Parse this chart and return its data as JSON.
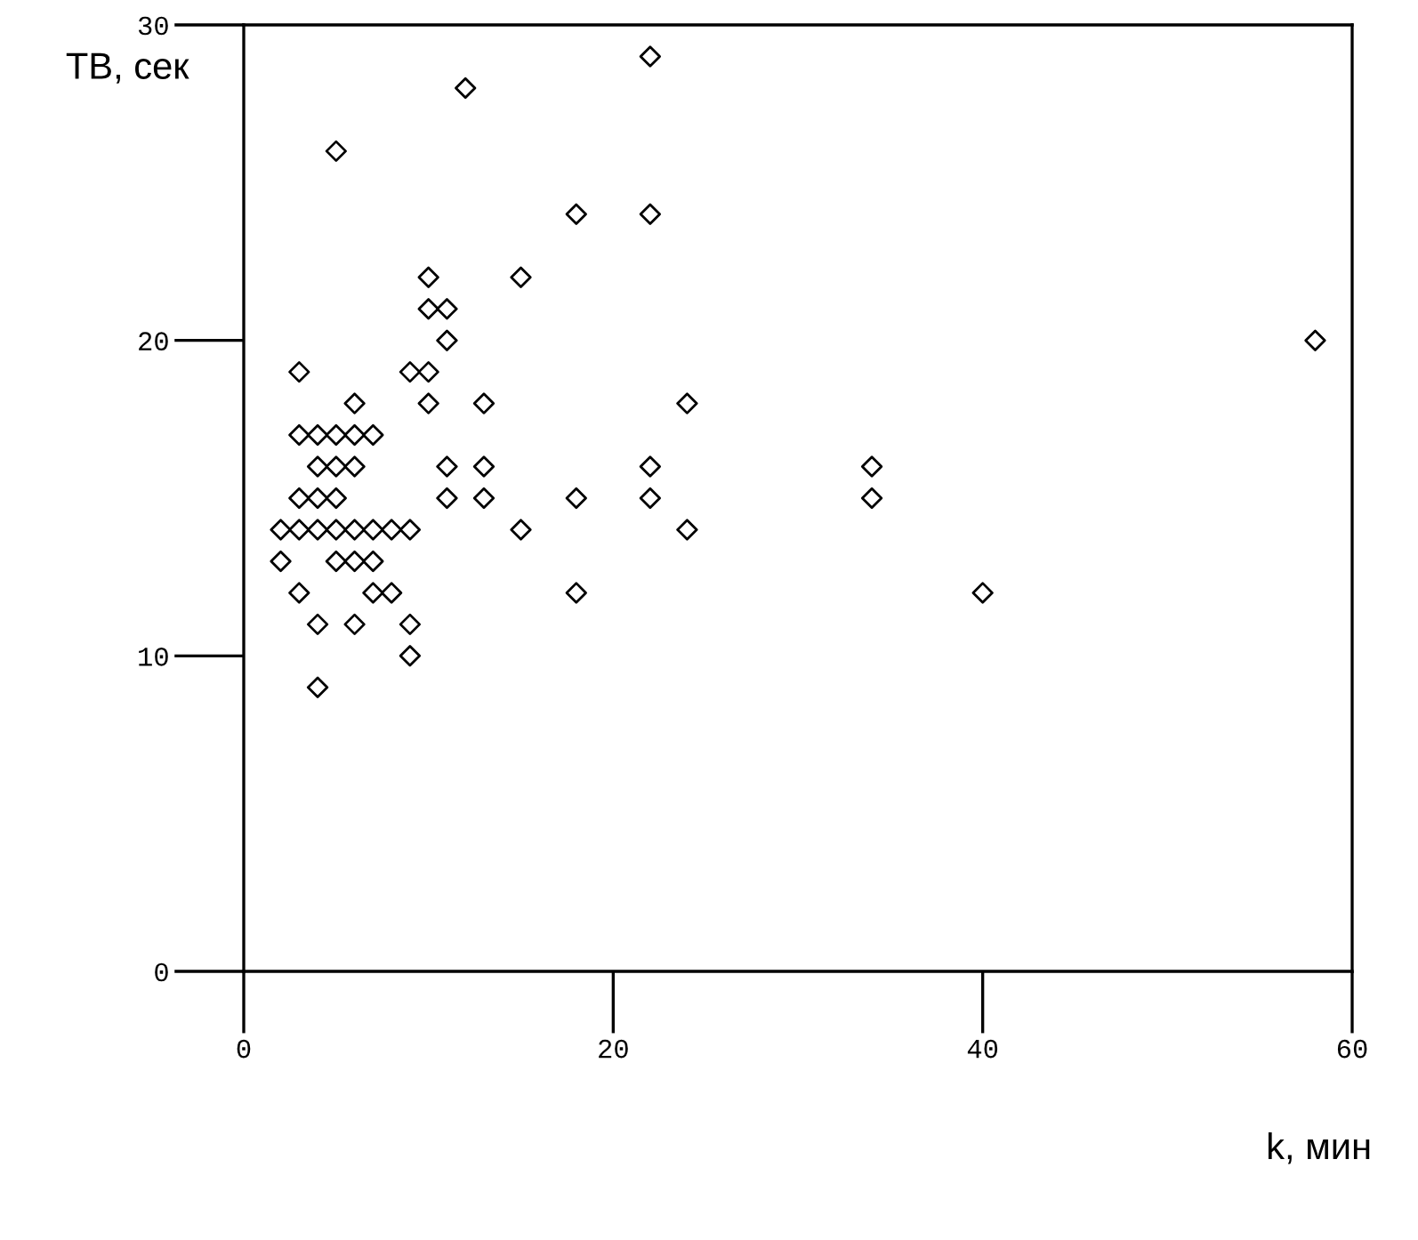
{
  "chart_data": {
    "type": "scatter",
    "xlabel": "k, мин",
    "ylabel": "ТВ, сек",
    "x": [
      2,
      2,
      3,
      3,
      3,
      3,
      3,
      4,
      4,
      4,
      4,
      4,
      4,
      5,
      5,
      5,
      5,
      5,
      5,
      6,
      6,
      6,
      6,
      6,
      6,
      7,
      7,
      7,
      7,
      8,
      8,
      9,
      9,
      9,
      9,
      10,
      10,
      10,
      10,
      11,
      11,
      11,
      11,
      12,
      13,
      13,
      13,
      15,
      15,
      18,
      18,
      18,
      22,
      22,
      22,
      22,
      24,
      24,
      34,
      34,
      40,
      58
    ],
    "values": [
      14,
      13,
      19,
      17,
      15,
      14,
      12,
      17,
      16,
      15,
      14,
      11,
      9,
      26,
      17,
      16,
      15,
      14,
      13,
      18,
      17,
      16,
      14,
      13,
      11,
      17,
      14,
      13,
      12,
      14,
      12,
      19,
      14,
      11,
      10,
      22,
      21,
      19,
      18,
      21,
      20,
      16,
      15,
      28,
      18,
      16,
      15,
      22,
      14,
      24,
      15,
      12,
      29,
      24,
      16,
      15,
      18,
      14,
      16,
      15,
      12,
      20
    ],
    "color": "#000000",
    "marker": "diamond",
    "xlim": [
      0,
      60
    ],
    "xticks": [
      0,
      20,
      40,
      60
    ],
    "ylim": [
      0,
      30
    ],
    "yticks": [
      0,
      10,
      20,
      30
    ],
    "grid": false
  }
}
